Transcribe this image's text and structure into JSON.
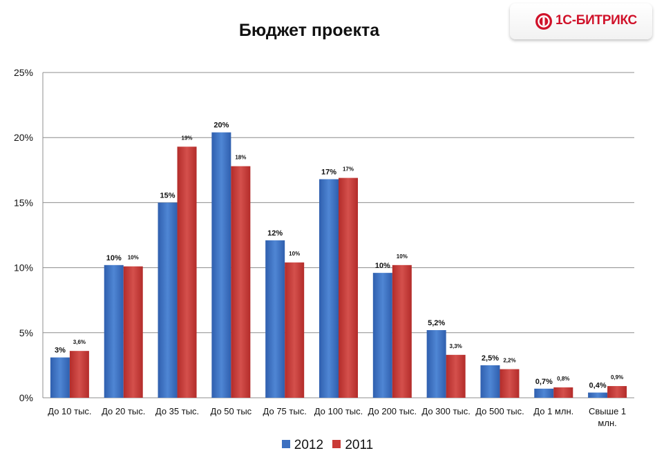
{
  "logo": {
    "text": "1С-БИТРИКС",
    "name": "1c-bitrix-logo"
  },
  "colors": {
    "series_2012": "#3b6fc0",
    "series_2011": "#c93a37",
    "grid": "#8c8c8c",
    "axis": "#8c8c8c"
  },
  "chart_data": {
    "type": "bar",
    "title": "Бюджет проекта",
    "categories": [
      "До 10 тыс.",
      "До 20 тыс.",
      "До 35 тыс.",
      "До 50 тыс",
      "До 75 тыс.",
      "До 100 тыс.",
      "До 200 тыс.",
      "До 300 тыс.",
      "До 500 тыс.",
      "До 1 млн.",
      "Свыше 1 млн."
    ],
    "series": [
      {
        "name": "2012",
        "values": [
          3.1,
          10.2,
          15.0,
          20.4,
          12.1,
          16.8,
          9.6,
          5.2,
          2.5,
          0.7,
          0.4
        ],
        "labels": [
          "3%",
          "10%",
          "15%",
          "20%",
          "12%",
          "17%",
          "10%",
          "5,2%",
          "2,5%",
          "0,7%",
          "0,4%"
        ]
      },
      {
        "name": "2011",
        "values": [
          3.6,
          10.1,
          19.3,
          17.8,
          10.4,
          16.9,
          10.2,
          3.3,
          2.2,
          0.8,
          0.9
        ],
        "labels": [
          "3,6%",
          "10%",
          "19%",
          "18%",
          "10%",
          "17%",
          "10%",
          "3,3%",
          "2,2%",
          "0,8%",
          "0,9%"
        ]
      }
    ],
    "yticks": [
      "0%",
      "5%",
      "10%",
      "15%",
      "20%",
      "25%"
    ],
    "ylim": [
      0,
      25
    ],
    "grid": true,
    "legend": "bottom"
  }
}
